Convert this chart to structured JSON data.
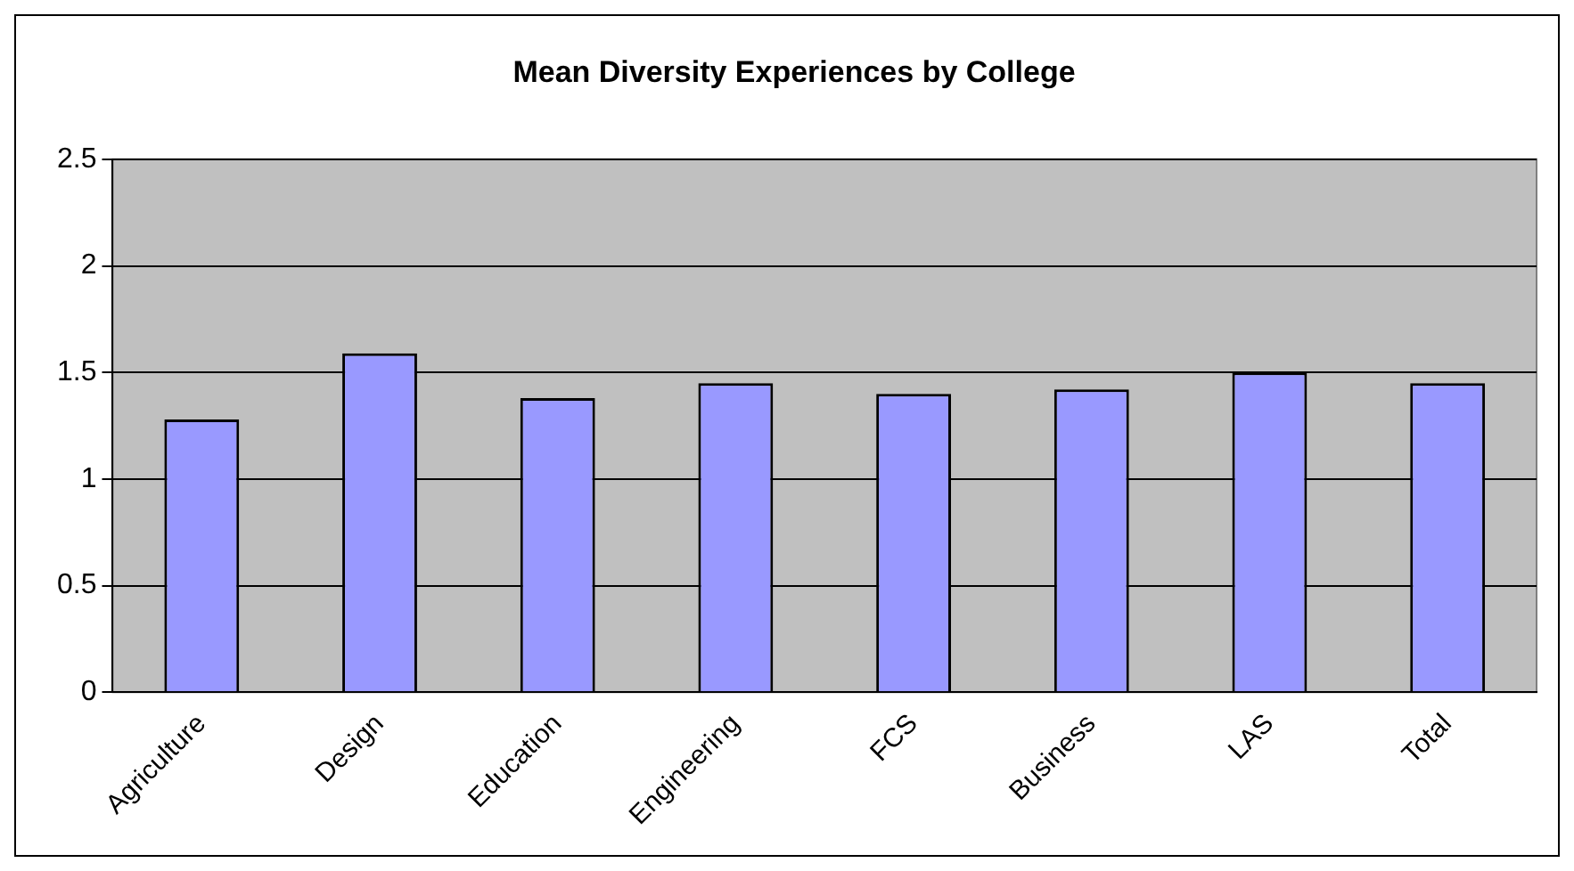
{
  "chart_data": {
    "type": "bar",
    "title": "Mean Diversity Experiences by College",
    "categories": [
      "Agriculture",
      "Design",
      "Education",
      "Engineering",
      "FCS",
      "Business",
      "LAS",
      "Total"
    ],
    "values": [
      1.28,
      1.59,
      1.38,
      1.45,
      1.4,
      1.42,
      1.5,
      1.45
    ],
    "color": "#9999ff",
    "ylim": [
      0,
      2.5
    ],
    "yticks": [
      0,
      0.5,
      1,
      1.5,
      2,
      2.5
    ],
    "grid": "y",
    "legend": false
  }
}
